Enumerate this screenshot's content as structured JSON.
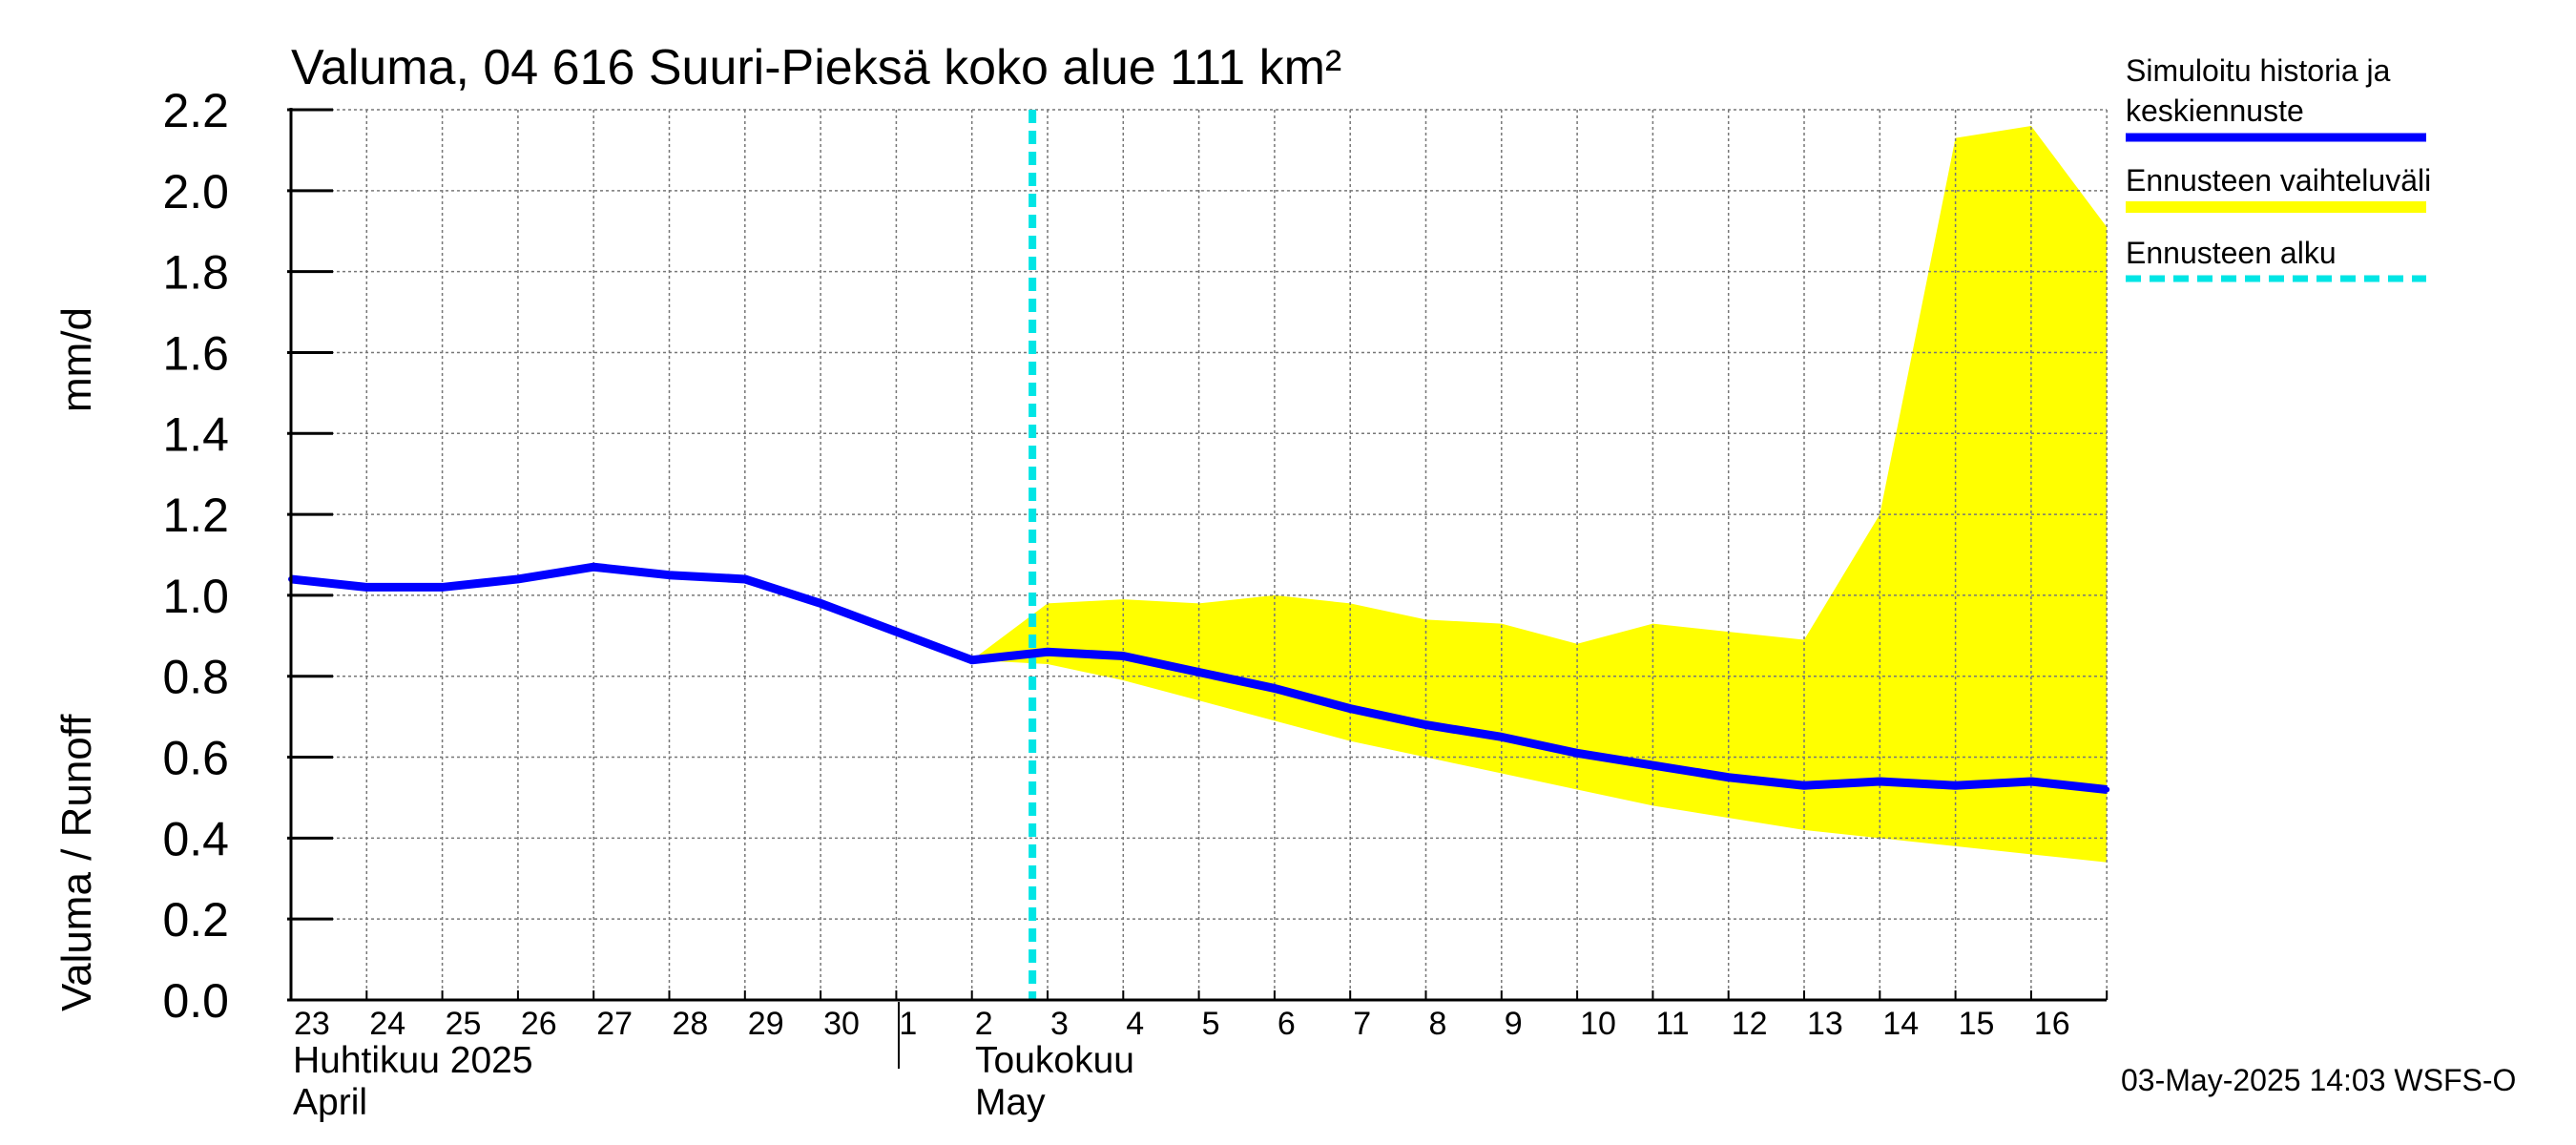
{
  "chart_data": {
    "type": "line",
    "title": "Valuma, 04 616 Suuri-Pieksä koko alue 111 km²",
    "ylabel_left": "Valuma / Runoff",
    "ylabel_right": "mm/d",
    "ylim": [
      0,
      2.2
    ],
    "yticks": [
      "0.0",
      "0.2",
      "0.4",
      "0.6",
      "0.8",
      "1.0",
      "1.2",
      "1.4",
      "1.6",
      "1.8",
      "2.0",
      "2.2"
    ],
    "x_dates": [
      "2025-04-23",
      "2025-04-24",
      "2025-04-25",
      "2025-04-26",
      "2025-04-27",
      "2025-04-28",
      "2025-04-29",
      "2025-04-30",
      "2025-05-01",
      "2025-05-02",
      "2025-05-03",
      "2025-05-04",
      "2025-05-05",
      "2025-05-06",
      "2025-05-07",
      "2025-05-08",
      "2025-05-09",
      "2025-05-10",
      "2025-05-11",
      "2025-05-12",
      "2025-05-13",
      "2025-05-14",
      "2025-05-15",
      "2025-05-16",
      "2025-05-17"
    ],
    "xtick_labels": [
      "23",
      "24",
      "25",
      "26",
      "27",
      "28",
      "29",
      "30",
      "1",
      "2",
      "3",
      "4",
      "5",
      "6",
      "7",
      "8",
      "9",
      "10",
      "11",
      "12",
      "13",
      "14",
      "15",
      "16"
    ],
    "months": [
      {
        "fi": "Huhtikuu  2025",
        "en": "April"
      },
      {
        "fi": "Toukokuu",
        "en": "May"
      }
    ],
    "grid": true,
    "legend_position": "right",
    "forecast_start": "2025-05-03",
    "series": [
      {
        "name": "Simuloitu historia ja keskiennuste",
        "color": "#0000ff",
        "values": [
          1.04,
          1.02,
          1.02,
          1.04,
          1.07,
          1.05,
          1.04,
          0.98,
          0.91,
          0.84,
          0.86,
          0.85,
          0.81,
          0.77,
          0.72,
          0.68,
          0.65,
          0.61,
          0.58,
          0.55,
          0.53,
          0.54,
          0.53,
          0.54,
          0.52
        ]
      }
    ],
    "band": {
      "name": "Ennusteen vaihteluväli",
      "color": "#ffff00",
      "x_start_index": 9,
      "lower": [
        0.84,
        0.83,
        0.79,
        0.74,
        0.69,
        0.64,
        0.6,
        0.56,
        0.52,
        0.48,
        0.45,
        0.42,
        0.4,
        0.38,
        0.36,
        0.34
      ],
      "upper": [
        0.84,
        0.98,
        0.99,
        0.98,
        1.0,
        0.98,
        0.94,
        0.93,
        0.88,
        0.93,
        0.91,
        0.89,
        1.2,
        2.13,
        2.16,
        1.91
      ]
    },
    "forecast_line": {
      "name": "Ennusteen alku",
      "color": "#00e5e5"
    }
  },
  "legend": {
    "history_line1": "Simuloitu historia ja",
    "history_line2": "keskiennuste",
    "range": "Ennusteen vaihteluväli",
    "start": "Ennusteen alku"
  },
  "footer": "03-May-2025 14:03 WSFS-O"
}
